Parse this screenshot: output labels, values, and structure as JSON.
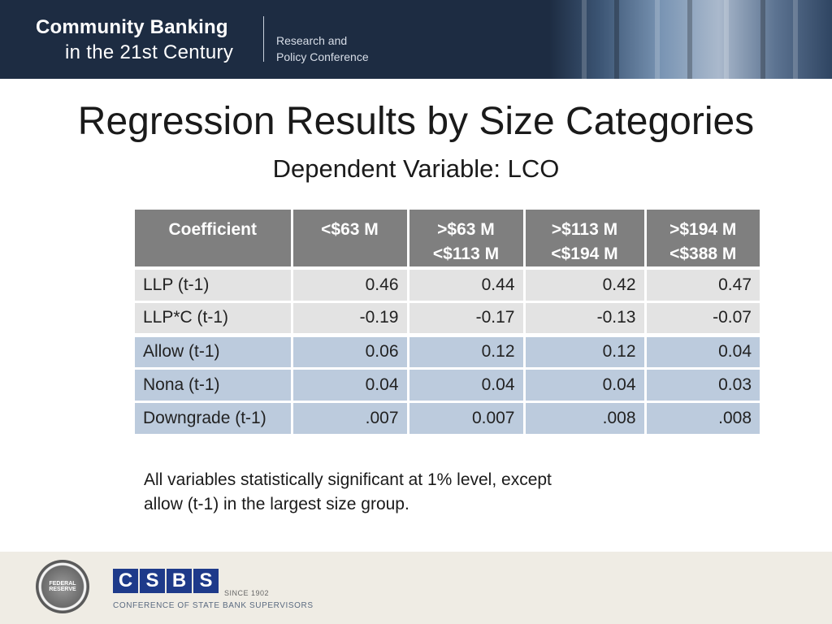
{
  "banner": {
    "line1": "Community Banking",
    "line2": "in the 21st Century",
    "sub1": "Research and",
    "sub2": "Policy Conference"
  },
  "title": "Regression Results by Size Categories",
  "subtitle": "Dependent Variable:  LCO",
  "table": {
    "headers": [
      [
        "Coefficient",
        ""
      ],
      [
        "<$63 M",
        ""
      ],
      [
        ">$63 M",
        "<$113 M"
      ],
      [
        ">$113 M",
        "<$194 M"
      ],
      [
        ">$194  M",
        "<$388 M"
      ]
    ],
    "rows": [
      [
        "LLP (t-1)",
        "0.46",
        "0.44",
        "0.42",
        "0.47"
      ],
      [
        "LLP*C  (t-1)",
        "-0.19",
        "-0.17",
        "-0.13",
        "-0.07"
      ],
      [
        "Allow (t-1)",
        "0.06",
        "0.12",
        "0.12",
        "0.04"
      ],
      [
        "Nona (t-1)",
        "0.04",
        "0.04",
        "0.04",
        "0.03"
      ],
      [
        "Downgrade (t-1)",
        ".007",
        "0.007",
        ".008",
        ".008"
      ]
    ]
  },
  "note": {
    "line1": "All variables statistically significant at 1% level, except",
    "line2": "allow (t-1) in the largest size group."
  },
  "footer": {
    "seal_text": "FEDERAL RESERVE",
    "csbs_letters": [
      "C",
      "S",
      "B",
      "S"
    ],
    "since": "SINCE 1902",
    "csbs_name": "CONFERENCE OF STATE BANK SUPERVISORS"
  },
  "colors": {
    "banner": "#1d2c42",
    "header_cell": "#7f7f7f",
    "gray_row": "#e3e3e3",
    "blue_row": "#bccbdd",
    "csbs_blue": "#1e3a8a"
  }
}
